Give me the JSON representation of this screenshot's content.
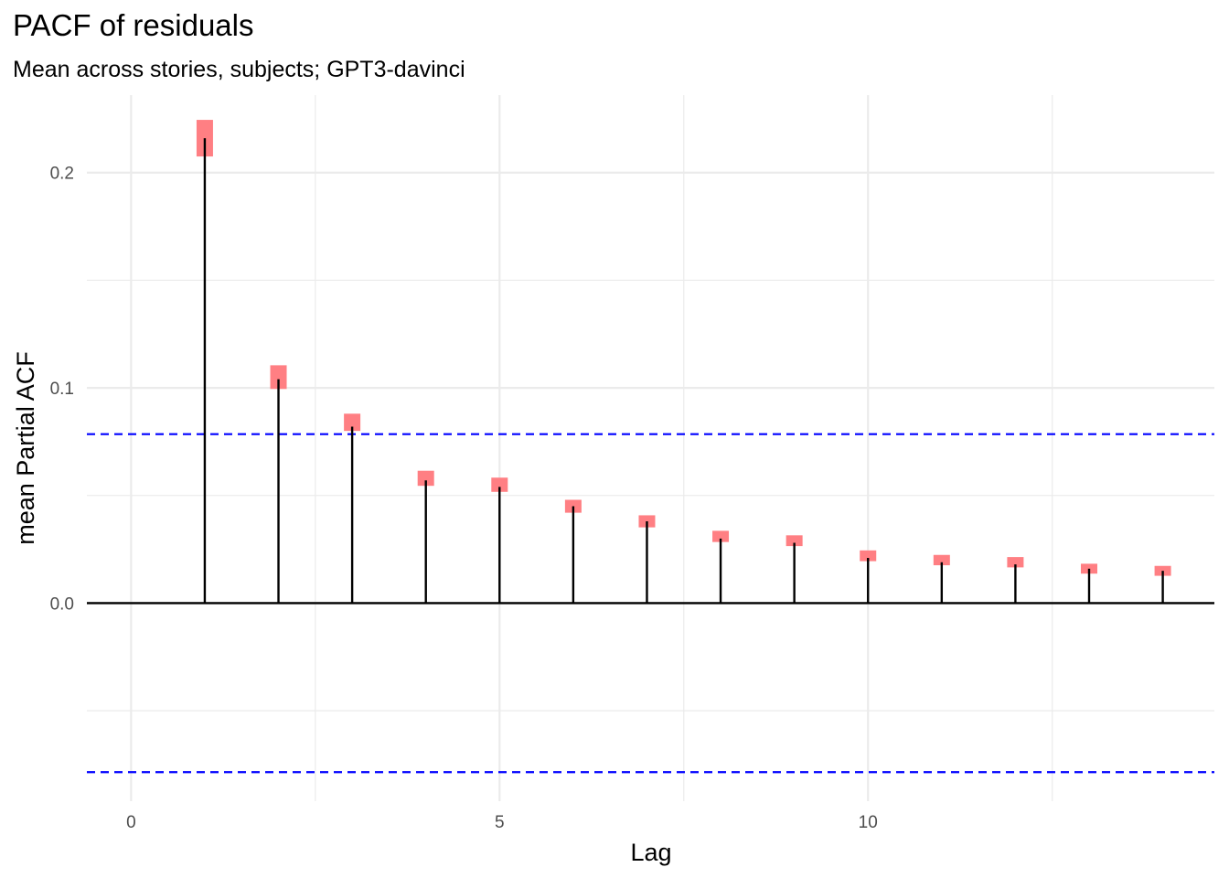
{
  "chart_data": {
    "type": "lollipop",
    "title": "PACF of residuals",
    "subtitle": "Mean across stories, subjects;  GPT3-davinci",
    "xlabel": "Lag",
    "ylabel": "mean Partial ACF",
    "xlim": [
      -0.6,
      14.7
    ],
    "ylim": [
      -0.092,
      0.236
    ],
    "x_ticks": [
      0,
      5,
      10
    ],
    "x_tick_labels": [
      "0",
      "5",
      "10"
    ],
    "y_ticks": [
      0.0,
      0.1,
      0.2
    ],
    "y_tick_labels": [
      "0.0",
      "0.1",
      "0.2"
    ],
    "x_minor_ticks": [
      2.5,
      7.5,
      12.5
    ],
    "y_minor_ticks": [
      -0.05,
      0.05,
      0.15
    ],
    "grid": true,
    "significance_band": [
      -0.0785,
      0.0785
    ],
    "lag": [
      1,
      2,
      3,
      4,
      5,
      6,
      7,
      8,
      9,
      10,
      11,
      12,
      13,
      14
    ],
    "pacf": [
      0.216,
      0.104,
      0.082,
      0.057,
      0.054,
      0.045,
      0.038,
      0.03,
      0.028,
      0.021,
      0.019,
      0.018,
      0.016,
      0.015
    ],
    "marker_mean": [
      0.216,
      0.105,
      0.084,
      0.058,
      0.055,
      0.045,
      0.038,
      0.031,
      0.029,
      0.022,
      0.02,
      0.019,
      0.016,
      0.015
    ],
    "marker_spread": [
      0.0085,
      0.0055,
      0.004,
      0.0035,
      0.0033,
      0.003,
      0.0028,
      0.0026,
      0.0025,
      0.0025,
      0.0024,
      0.0024,
      0.0023,
      0.0023
    ],
    "colors": {
      "stem": "#000000",
      "marker": "#ff7f83",
      "band": "#0000ff",
      "grid": "#ebebeb",
      "zero_line": "#000000"
    }
  }
}
